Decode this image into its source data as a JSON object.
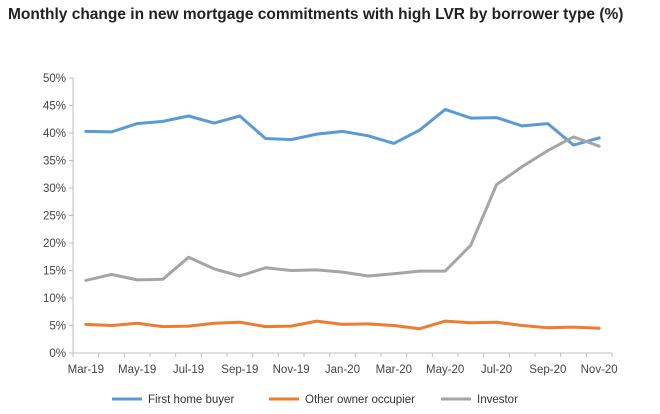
{
  "chart_data": {
    "type": "line",
    "title": "Monthly change in new mortgage commitments with high LVR by borrower type (%)",
    "x": [
      "Mar-19",
      "Apr-19",
      "May-19",
      "Jun-19",
      "Jul-19",
      "Aug-19",
      "Sep-19",
      "Oct-19",
      "Nov-19",
      "Dec-19",
      "Jan-20",
      "Feb-20",
      "Mar-20",
      "Apr-20",
      "May-20",
      "Jun-20",
      "Jul-20",
      "Aug-20",
      "Sep-20",
      "Oct-20",
      "Nov-20"
    ],
    "x_tick_labels": [
      "Mar-19",
      "May-19",
      "Jul-19",
      "Sep-19",
      "Nov-19",
      "Jan-20",
      "Mar-20",
      "May-20",
      "Jul-20",
      "Sep-20",
      "Nov-20"
    ],
    "y_tick_labels": [
      "0%",
      "5%",
      "10%",
      "15%",
      "20%",
      "25%",
      "30%",
      "35%",
      "40%",
      "45%",
      "50%"
    ],
    "ylim": [
      0,
      50
    ],
    "grid": false,
    "legend_position": "bottom",
    "series": [
      {
        "name": "First home buyer",
        "color": "#5B9BD5",
        "values": [
          40.3,
          40.2,
          41.7,
          42.1,
          43.1,
          41.8,
          43.1,
          39.0,
          38.8,
          39.8,
          40.3,
          39.5,
          38.1,
          40.5,
          44.3,
          42.7,
          42.8,
          41.3,
          41.7,
          37.8,
          39.1
        ]
      },
      {
        "name": "Other owner occupier",
        "color": "#ED7D31",
        "values": [
          5.2,
          5.0,
          5.4,
          4.8,
          4.9,
          5.4,
          5.6,
          4.8,
          4.9,
          5.8,
          5.2,
          5.3,
          5.0,
          4.4,
          5.8,
          5.5,
          5.6,
          5.0,
          4.6,
          4.7,
          4.5
        ]
      },
      {
        "name": "Investor",
        "color": "#A5A5A5",
        "values": [
          13.2,
          14.3,
          13.3,
          13.4,
          17.4,
          15.3,
          14.0,
          15.5,
          15.0,
          15.1,
          14.7,
          14.0,
          14.4,
          14.9,
          14.9,
          19.6,
          30.6,
          33.9,
          36.8,
          39.3,
          37.6
        ]
      }
    ]
  }
}
